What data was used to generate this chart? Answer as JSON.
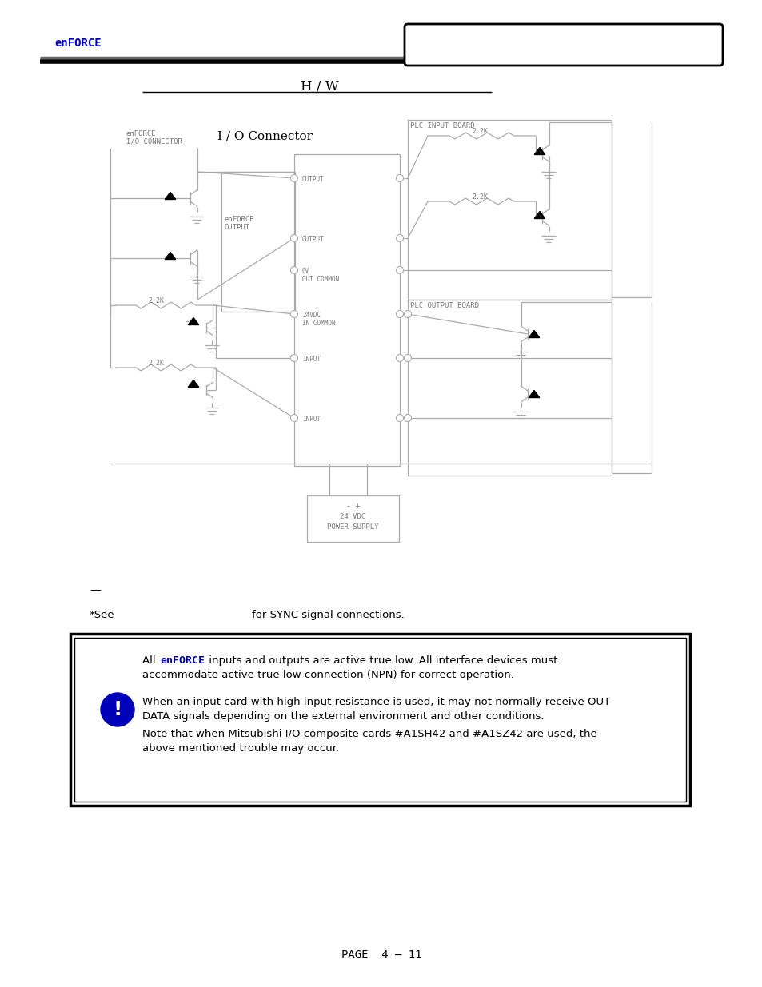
{
  "title": "H / W",
  "enforce_color": "#0000CC",
  "page_number": "PAGE  4 – 11",
  "header_logo": "enFORCE",
  "bg_color": "#FFFFFF",
  "cc": "#AAAAAA",
  "lw": 0.9
}
